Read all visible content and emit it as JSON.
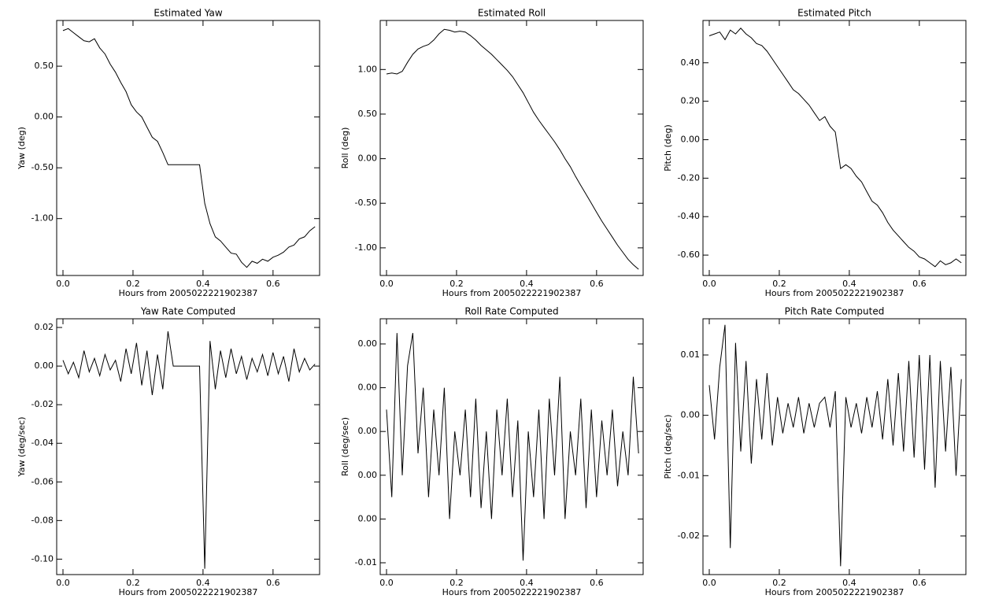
{
  "chart_data": [
    {
      "type": "line",
      "title": "Estimated Yaw",
      "x_label": "Hours from 2005022221902387",
      "y_label": "Yaw (deg)",
      "color": "#000000",
      "x": [
        0,
        0.015,
        0.03,
        0.045,
        0.06,
        0.075,
        0.09,
        0.105,
        0.12,
        0.135,
        0.15,
        0.165,
        0.18,
        0.195,
        0.21,
        0.225,
        0.24,
        0.255,
        0.27,
        0.285,
        0.3,
        0.315,
        0.33,
        0.345,
        0.36,
        0.375,
        0.39,
        0.405,
        0.42,
        0.435,
        0.45,
        0.465,
        0.48,
        0.495,
        0.51,
        0.525,
        0.54,
        0.555,
        0.57,
        0.585,
        0.6,
        0.615,
        0.63,
        0.645,
        0.66,
        0.675,
        0.69,
        0.705,
        0.72
      ],
      "values": [
        0.85,
        0.87,
        0.83,
        0.79,
        0.75,
        0.74,
        0.77,
        0.68,
        0.62,
        0.52,
        0.44,
        0.34,
        0.25,
        0.12,
        0.05,
        0.0,
        -0.1,
        -0.2,
        -0.24,
        -0.35,
        -0.47,
        -0.47,
        -0.47,
        -0.47,
        -0.47,
        -0.47,
        -0.47,
        -0.85,
        -1.05,
        -1.18,
        -1.22,
        -1.28,
        -1.34,
        -1.35,
        -1.43,
        -1.48,
        -1.42,
        -1.44,
        -1.4,
        -1.42,
        -1.38,
        -1.36,
        -1.33,
        -1.28,
        -1.26,
        -1.2,
        -1.18,
        -1.12,
        -1.08
      ],
      "xlim": [
        -0.018,
        0.733
      ],
      "xticks": [
        {
          "value": 0,
          "label": "0.0"
        },
        0.2,
        0.4,
        0.6
      ],
      "ylim": [
        -1.56,
        0.95
      ],
      "yticks": [
        {
          "value": 0.5,
          "label": "0.50"
        },
        {
          "value": 0,
          "label": "0.00"
        },
        {
          "value": -0.5,
          "label": "-0.50"
        },
        {
          "value": -1,
          "label": "-1.00"
        }
      ]
    },
    {
      "type": "line",
      "title": "Estimated Roll",
      "x_label": "Hours from 2005022221902387",
      "y_label": "Roll (deg)",
      "color": "#000000",
      "x": [
        0,
        0.015,
        0.03,
        0.045,
        0.06,
        0.075,
        0.09,
        0.105,
        0.12,
        0.135,
        0.15,
        0.165,
        0.18,
        0.195,
        0.21,
        0.225,
        0.24,
        0.255,
        0.27,
        0.285,
        0.3,
        0.315,
        0.33,
        0.345,
        0.36,
        0.375,
        0.39,
        0.405,
        0.42,
        0.435,
        0.45,
        0.465,
        0.48,
        0.495,
        0.51,
        0.525,
        0.54,
        0.555,
        0.57,
        0.585,
        0.6,
        0.615,
        0.63,
        0.645,
        0.66,
        0.675,
        0.69,
        0.705,
        0.72
      ],
      "values": [
        0.95,
        0.96,
        0.95,
        0.98,
        1.08,
        1.17,
        1.23,
        1.26,
        1.28,
        1.33,
        1.4,
        1.45,
        1.44,
        1.42,
        1.43,
        1.42,
        1.38,
        1.33,
        1.27,
        1.22,
        1.17,
        1.11,
        1.05,
        0.99,
        0.92,
        0.83,
        0.74,
        0.63,
        0.52,
        0.43,
        0.35,
        0.27,
        0.19,
        0.1,
        0.0,
        -0.09,
        -0.2,
        -0.3,
        -0.4,
        -0.5,
        -0.6,
        -0.7,
        -0.79,
        -0.88,
        -0.97,
        -1.05,
        -1.13,
        -1.19,
        -1.24
      ],
      "xlim": [
        -0.018,
        0.733
      ],
      "xticks": [
        {
          "value": 0,
          "label": "0.0"
        },
        0.2,
        0.4,
        0.6
      ],
      "ylim": [
        -1.31,
        1.55
      ],
      "yticks": [
        {
          "value": 1,
          "label": "1.00"
        },
        {
          "value": 0.5,
          "label": "0.50"
        },
        {
          "value": 0,
          "label": "0.00"
        },
        {
          "value": -0.5,
          "label": "-0.50"
        },
        {
          "value": -1,
          "label": "-1.00"
        }
      ]
    },
    {
      "type": "line",
      "title": "Estimated Pitch",
      "x_label": "Hours from 2005022221902387",
      "y_label": "Pitch (deg)",
      "color": "#000000",
      "x": [
        0,
        0.015,
        0.03,
        0.045,
        0.06,
        0.075,
        0.09,
        0.105,
        0.12,
        0.135,
        0.15,
        0.165,
        0.18,
        0.195,
        0.21,
        0.225,
        0.24,
        0.255,
        0.27,
        0.285,
        0.3,
        0.315,
        0.33,
        0.345,
        0.36,
        0.375,
        0.39,
        0.405,
        0.42,
        0.435,
        0.45,
        0.465,
        0.48,
        0.495,
        0.51,
        0.525,
        0.54,
        0.555,
        0.57,
        0.585,
        0.6,
        0.615,
        0.63,
        0.645,
        0.66,
        0.675,
        0.69,
        0.705,
        0.72
      ],
      "values": [
        0.54,
        0.55,
        0.56,
        0.52,
        0.57,
        0.55,
        0.58,
        0.55,
        0.53,
        0.5,
        0.49,
        0.46,
        0.42,
        0.38,
        0.34,
        0.3,
        0.26,
        0.24,
        0.21,
        0.18,
        0.14,
        0.1,
        0.12,
        0.07,
        0.04,
        -0.15,
        -0.13,
        -0.15,
        -0.19,
        -0.22,
        -0.27,
        -0.32,
        -0.34,
        -0.38,
        -0.43,
        -0.47,
        -0.5,
        -0.53,
        -0.56,
        -0.58,
        -0.61,
        -0.62,
        -0.64,
        -0.66,
        -0.63,
        -0.65,
        -0.64,
        -0.62,
        -0.64
      ],
      "xlim": [
        -0.018,
        0.733
      ],
      "xticks": [
        {
          "value": 0,
          "label": "0.0"
        },
        0.2,
        0.4,
        0.6
      ],
      "ylim": [
        -0.706,
        0.62
      ],
      "yticks": [
        {
          "value": 0.4,
          "label": "0.40"
        },
        {
          "value": 0.2,
          "label": "0.20"
        },
        {
          "value": 0,
          "label": "0.00"
        },
        {
          "value": -0.2,
          "label": "-0.20"
        },
        {
          "value": -0.4,
          "label": "-0.40"
        },
        {
          "value": -0.6,
          "label": "-0.60"
        }
      ]
    },
    {
      "type": "line",
      "title": "Yaw Rate Computed",
      "x_label": "Hours from 2005022221902387",
      "y_label": "Yaw (deg/sec)",
      "color": "#000000",
      "x": [
        0,
        0.015,
        0.03,
        0.045,
        0.06,
        0.075,
        0.09,
        0.105,
        0.12,
        0.135,
        0.15,
        0.165,
        0.18,
        0.195,
        0.21,
        0.225,
        0.24,
        0.255,
        0.27,
        0.285,
        0.3,
        0.315,
        0.33,
        0.345,
        0.36,
        0.375,
        0.39,
        0.405,
        0.42,
        0.435,
        0.45,
        0.465,
        0.48,
        0.495,
        0.51,
        0.525,
        0.54,
        0.555,
        0.57,
        0.585,
        0.6,
        0.615,
        0.63,
        0.645,
        0.66,
        0.675,
        0.69,
        0.705,
        0.72
      ],
      "values": [
        0.003,
        -0.004,
        0.002,
        -0.006,
        0.008,
        -0.003,
        0.004,
        -0.005,
        0.006,
        -0.002,
        0.003,
        -0.008,
        0.009,
        -0.004,
        0.012,
        -0.01,
        0.008,
        -0.015,
        0.006,
        -0.012,
        0.018,
        0,
        0,
        0,
        0,
        0,
        0,
        -0.105,
        0.013,
        -0.012,
        0.008,
        -0.006,
        0.009,
        -0.004,
        0.005,
        -0.007,
        0.004,
        -0.003,
        0.006,
        -0.005,
        0.007,
        -0.004,
        0.005,
        -0.008,
        0.009,
        -0.003,
        0.004,
        -0.002,
        0.001
      ],
      "xlim": [
        -0.018,
        0.733
      ],
      "xticks": [
        {
          "value": 0,
          "label": "0.0"
        },
        0.2,
        0.4,
        0.6
      ],
      "ylim": [
        -0.108,
        0.0245
      ],
      "yticks": [
        0.02,
        {
          "value": 0,
          "label": "0.00"
        },
        -0.02,
        -0.04,
        -0.06,
        -0.08,
        {
          "value": -0.1,
          "label": "-0.10"
        }
      ]
    },
    {
      "type": "line",
      "title": "Roll Rate Computed",
      "x_label": "Hours from 2005022221902387",
      "y_label": "Roll (deg/sec)",
      "color": "#000000",
      "x": [
        0,
        0.015,
        0.03,
        0.045,
        0.06,
        0.075,
        0.09,
        0.105,
        0.12,
        0.135,
        0.15,
        0.165,
        0.18,
        0.195,
        0.21,
        0.225,
        0.24,
        0.255,
        0.27,
        0.285,
        0.3,
        0.315,
        0.33,
        0.345,
        0.36,
        0.375,
        0.39,
        0.405,
        0.42,
        0.435,
        0.45,
        0.465,
        0.48,
        0.495,
        0.51,
        0.525,
        0.54,
        0.555,
        0.57,
        0.585,
        0.6,
        0.615,
        0.63,
        0.645,
        0.66,
        0.675,
        0.69,
        0.705,
        0.72
      ],
      "values": [
        0.001,
        -0.003,
        0.0045,
        -0.002,
        0.003,
        0.0045,
        -0.001,
        0.002,
        -0.003,
        0.001,
        -0.002,
        0.002,
        -0.004,
        0.0,
        -0.002,
        0.001,
        -0.003,
        0.0015,
        -0.0035,
        0.0,
        -0.004,
        0.001,
        -0.002,
        0.0015,
        -0.003,
        0.0005,
        -0.0059,
        0.0,
        -0.003,
        0.001,
        -0.004,
        0.0015,
        -0.002,
        0.0025,
        -0.004,
        0.0,
        -0.002,
        0.0015,
        -0.0035,
        0.001,
        -0.003,
        0.0005,
        -0.002,
        0.001,
        -0.0025,
        0.0,
        -0.002,
        0.0025,
        -0.001
      ],
      "xlim": [
        -0.018,
        0.733
      ],
      "xticks": [
        {
          "value": 0,
          "label": "0.0"
        },
        0.2,
        0.4,
        0.6
      ],
      "ylim": [
        -0.00654,
        0.00515
      ],
      "yticks": [
        {
          "value": 0.004,
          "label": "0.00"
        },
        {
          "value": 0.002,
          "label": "0.00"
        },
        {
          "value": 0,
          "label": "0.00"
        },
        {
          "value": -0.002,
          "label": "0.00"
        },
        {
          "value": -0.004,
          "label": "0.00"
        },
        {
          "value": -0.006,
          "label": "-0.01"
        }
      ]
    },
    {
      "type": "line",
      "title": "Pitch Rate Computed",
      "x_label": "Hours from 2005022221902387",
      "y_label": "Pitch (deg/sec)",
      "color": "#000000",
      "x": [
        0,
        0.015,
        0.03,
        0.045,
        0.06,
        0.075,
        0.09,
        0.105,
        0.12,
        0.135,
        0.15,
        0.165,
        0.18,
        0.195,
        0.21,
        0.225,
        0.24,
        0.255,
        0.27,
        0.285,
        0.3,
        0.315,
        0.33,
        0.345,
        0.36,
        0.375,
        0.39,
        0.405,
        0.42,
        0.435,
        0.45,
        0.465,
        0.48,
        0.495,
        0.51,
        0.525,
        0.54,
        0.555,
        0.57,
        0.585,
        0.6,
        0.615,
        0.63,
        0.645,
        0.66,
        0.675,
        0.69,
        0.705,
        0.72
      ],
      "values": [
        0.005,
        -0.004,
        0.008,
        0.015,
        -0.022,
        0.012,
        -0.006,
        0.009,
        -0.008,
        0.006,
        -0.004,
        0.007,
        -0.005,
        0.003,
        -0.003,
        0.002,
        -0.002,
        0.003,
        -0.003,
        0.002,
        -0.002,
        0.002,
        0.003,
        -0.002,
        0.004,
        -0.025,
        0.003,
        -0.002,
        0.002,
        -0.003,
        0.003,
        -0.002,
        0.004,
        -0.004,
        0.006,
        -0.005,
        0.007,
        -0.006,
        0.009,
        -0.007,
        0.01,
        -0.009,
        0.01,
        -0.012,
        0.009,
        -0.006,
        0.008,
        -0.01,
        0.006
      ],
      "xlim": [
        -0.018,
        0.733
      ],
      "xticks": [
        {
          "value": 0,
          "label": "0.0"
        },
        0.2,
        0.4,
        0.6
      ],
      "ylim": [
        -0.0264,
        0.016
      ],
      "yticks": [
        0.01,
        {
          "value": 0,
          "label": "0.00"
        },
        -0.01,
        -0.02
      ]
    }
  ]
}
